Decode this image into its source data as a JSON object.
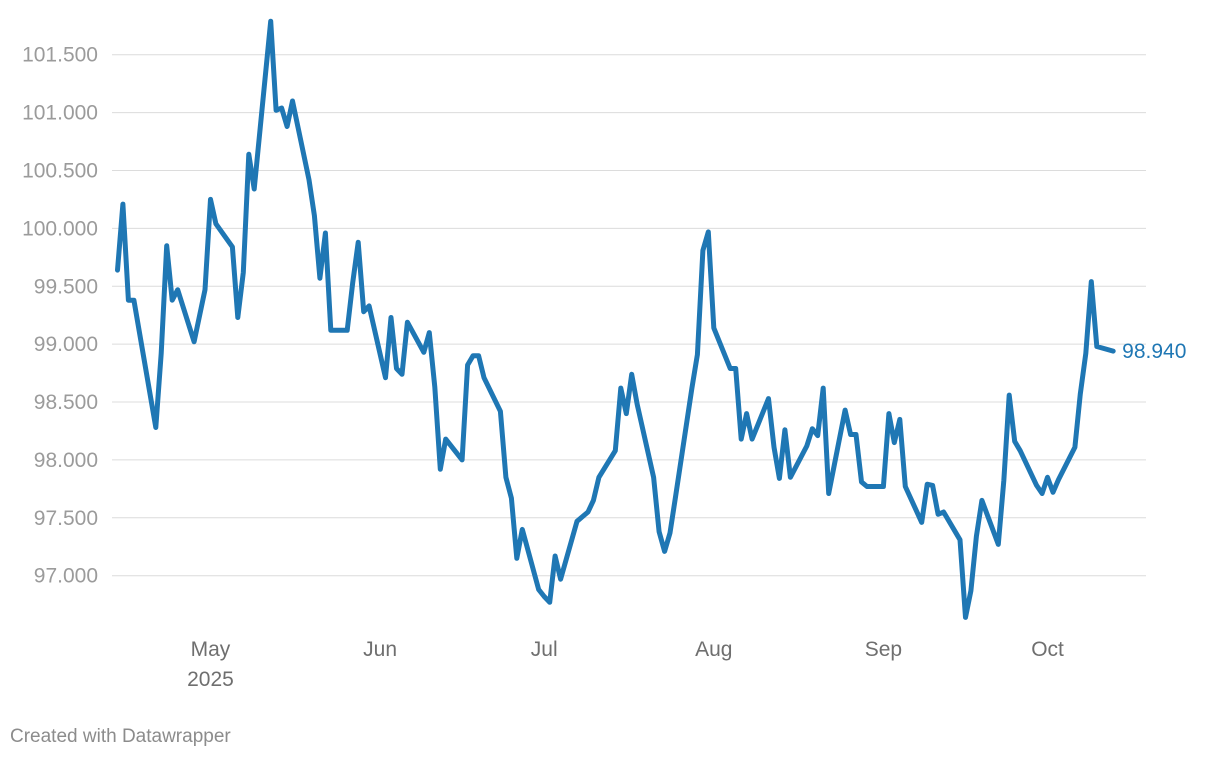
{
  "footer": "Created with Datawrapper",
  "colors": {
    "line": "#1f77b4",
    "grid": "#dcdcdc",
    "ytick": "#9b9b9b",
    "xtick": "#6f6f6f"
  },
  "chart_data": {
    "type": "line",
    "title": "",
    "xlabel": "",
    "ylabel": "",
    "grid": true,
    "ylim": [
      96.6,
      101.8
    ],
    "xlim": [
      "2025-04-13",
      "2025-10-19"
    ],
    "yticks": [
      97.0,
      97.5,
      98.0,
      98.5,
      99.0,
      99.5,
      100.0,
      100.5,
      101.0,
      101.5
    ],
    "ytick_labels": [
      "97.000",
      "97.500",
      "98.000",
      "98.500",
      "99.000",
      "99.500",
      "100.000",
      "100.500",
      "101.000",
      "101.500"
    ],
    "xticks": [
      {
        "date": "2025-05-01",
        "label": "May",
        "sublabel": "2025"
      },
      {
        "date": "2025-06-01",
        "label": "Jun"
      },
      {
        "date": "2025-07-01",
        "label": "Jul"
      },
      {
        "date": "2025-08-01",
        "label": "Aug"
      },
      {
        "date": "2025-09-01",
        "label": "Sep"
      },
      {
        "date": "2025-10-01",
        "label": "Oct"
      }
    ],
    "end_label": "98.940",
    "series": [
      {
        "points": [
          [
            "2025-04-14",
            99.64
          ],
          [
            "2025-04-15",
            100.21
          ],
          [
            "2025-04-16",
            99.38
          ],
          [
            "2025-04-17",
            99.38
          ],
          [
            "2025-04-21",
            98.28
          ],
          [
            "2025-04-22",
            98.92
          ],
          [
            "2025-04-23",
            99.85
          ],
          [
            "2025-04-24",
            99.38
          ],
          [
            "2025-04-25",
            99.47
          ],
          [
            "2025-04-28",
            99.02
          ],
          [
            "2025-04-30",
            99.47
          ],
          [
            "2025-05-01",
            100.25
          ],
          [
            "2025-05-02",
            100.04
          ],
          [
            "2025-05-05",
            99.84
          ],
          [
            "2025-05-06",
            99.23
          ],
          [
            "2025-05-07",
            99.62
          ],
          [
            "2025-05-08",
            100.64
          ],
          [
            "2025-05-09",
            100.34
          ],
          [
            "2025-05-12",
            101.79
          ],
          [
            "2025-05-13",
            101.02
          ],
          [
            "2025-05-14",
            101.04
          ],
          [
            "2025-05-15",
            100.88
          ],
          [
            "2025-05-16",
            101.1
          ],
          [
            "2025-05-19",
            100.42
          ],
          [
            "2025-05-20",
            100.11
          ],
          [
            "2025-05-21",
            99.57
          ],
          [
            "2025-05-22",
            99.96
          ],
          [
            "2025-05-23",
            99.12
          ],
          [
            "2025-05-26",
            99.12
          ],
          [
            "2025-05-27",
            99.53
          ],
          [
            "2025-05-28",
            99.88
          ],
          [
            "2025-05-29",
            99.28
          ],
          [
            "2025-05-30",
            99.33
          ],
          [
            "2025-06-02",
            98.71
          ],
          [
            "2025-06-03",
            99.23
          ],
          [
            "2025-06-04",
            98.79
          ],
          [
            "2025-06-05",
            98.74
          ],
          [
            "2025-06-06",
            99.19
          ],
          [
            "2025-06-09",
            98.93
          ],
          [
            "2025-06-10",
            99.1
          ],
          [
            "2025-06-11",
            98.63
          ],
          [
            "2025-06-12",
            97.92
          ],
          [
            "2025-06-13",
            98.18
          ],
          [
            "2025-06-16",
            98.0
          ],
          [
            "2025-06-17",
            98.82
          ],
          [
            "2025-06-18",
            98.9
          ],
          [
            "2025-06-19",
            98.9
          ],
          [
            "2025-06-20",
            98.71
          ],
          [
            "2025-06-23",
            98.42
          ],
          [
            "2025-06-24",
            97.85
          ],
          [
            "2025-06-25",
            97.67
          ],
          [
            "2025-06-26",
            97.15
          ],
          [
            "2025-06-27",
            97.4
          ],
          [
            "2025-06-30",
            96.88
          ],
          [
            "2025-07-01",
            96.82
          ],
          [
            "2025-07-02",
            96.77
          ],
          [
            "2025-07-03",
            97.17
          ],
          [
            "2025-07-04",
            96.97
          ],
          [
            "2025-07-07",
            97.47
          ],
          [
            "2025-07-08",
            97.51
          ],
          [
            "2025-07-09",
            97.55
          ],
          [
            "2025-07-10",
            97.65
          ],
          [
            "2025-07-11",
            97.85
          ],
          [
            "2025-07-14",
            98.08
          ],
          [
            "2025-07-15",
            98.62
          ],
          [
            "2025-07-16",
            98.4
          ],
          [
            "2025-07-17",
            98.74
          ],
          [
            "2025-07-18",
            98.48
          ],
          [
            "2025-07-21",
            97.85
          ],
          [
            "2025-07-22",
            97.38
          ],
          [
            "2025-07-23",
            97.21
          ],
          [
            "2025-07-24",
            97.37
          ],
          [
            "2025-07-25",
            97.68
          ],
          [
            "2025-07-28",
            98.62
          ],
          [
            "2025-07-29",
            98.91
          ],
          [
            "2025-07-30",
            99.81
          ],
          [
            "2025-07-31",
            99.97
          ],
          [
            "2025-08-01",
            99.14
          ],
          [
            "2025-08-04",
            98.79
          ],
          [
            "2025-08-05",
            98.79
          ],
          [
            "2025-08-06",
            98.18
          ],
          [
            "2025-08-07",
            98.4
          ],
          [
            "2025-08-08",
            98.18
          ],
          [
            "2025-08-11",
            98.53
          ],
          [
            "2025-08-12",
            98.11
          ],
          [
            "2025-08-13",
            97.84
          ],
          [
            "2025-08-14",
            98.26
          ],
          [
            "2025-08-15",
            97.85
          ],
          [
            "2025-08-18",
            98.12
          ],
          [
            "2025-08-19",
            98.27
          ],
          [
            "2025-08-20",
            98.21
          ],
          [
            "2025-08-21",
            98.62
          ],
          [
            "2025-08-22",
            97.71
          ],
          [
            "2025-08-25",
            98.43
          ],
          [
            "2025-08-26",
            98.22
          ],
          [
            "2025-08-27",
            98.22
          ],
          [
            "2025-08-28",
            97.81
          ],
          [
            "2025-08-29",
            97.77
          ],
          [
            "2025-09-01",
            97.77
          ],
          [
            "2025-09-02",
            98.4
          ],
          [
            "2025-09-03",
            98.15
          ],
          [
            "2025-09-04",
            98.35
          ],
          [
            "2025-09-05",
            97.77
          ],
          [
            "2025-09-08",
            97.46
          ],
          [
            "2025-09-09",
            97.79
          ],
          [
            "2025-09-10",
            97.78
          ],
          [
            "2025-09-11",
            97.53
          ],
          [
            "2025-09-12",
            97.55
          ],
          [
            "2025-09-15",
            97.31
          ],
          [
            "2025-09-16",
            96.64
          ],
          [
            "2025-09-17",
            96.87
          ],
          [
            "2025-09-18",
            97.34
          ],
          [
            "2025-09-19",
            97.65
          ],
          [
            "2025-09-22",
            97.27
          ],
          [
            "2025-09-23",
            97.82
          ],
          [
            "2025-09-24",
            98.56
          ],
          [
            "2025-09-25",
            98.16
          ],
          [
            "2025-09-26",
            98.08
          ],
          [
            "2025-09-29",
            97.78
          ],
          [
            "2025-09-30",
            97.71
          ],
          [
            "2025-10-01",
            97.85
          ],
          [
            "2025-10-02",
            97.72
          ],
          [
            "2025-10-03",
            97.83
          ],
          [
            "2025-10-06",
            98.11
          ],
          [
            "2025-10-07",
            98.57
          ],
          [
            "2025-10-08",
            98.92
          ],
          [
            "2025-10-09",
            99.54
          ],
          [
            "2025-10-10",
            98.98
          ],
          [
            "2025-10-13",
            98.94
          ]
        ]
      }
    ]
  }
}
